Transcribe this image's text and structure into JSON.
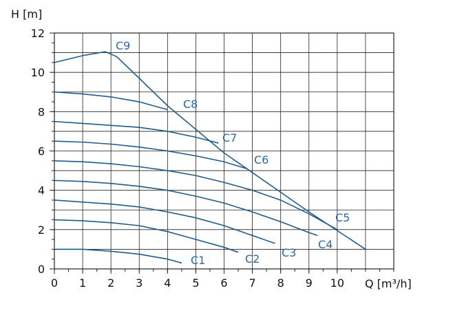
{
  "chart_data": {
    "type": "line",
    "y_label": "H [m]",
    "x_label": "Q [m³/h]",
    "xlim": [
      0,
      12
    ],
    "xticks": [
      0,
      1,
      2,
      3,
      4,
      5,
      6,
      7,
      8,
      9,
      10
    ],
    "ylim": [
      0,
      12
    ],
    "yticks": [
      0,
      2,
      4,
      6,
      8,
      10,
      12
    ],
    "grid": true,
    "series": [
      {
        "name": "C1",
        "color": "#1f5a8c",
        "x": [
          0,
          1,
          2,
          3,
          4,
          4.5
        ],
        "values": [
          1.0,
          1.0,
          0.9,
          0.75,
          0.5,
          0.3
        ]
      },
      {
        "name": "C2",
        "color": "#1f5a8c",
        "x": [
          0,
          1,
          2,
          3,
          4,
          5,
          6,
          6.5
        ],
        "values": [
          2.5,
          2.45,
          2.35,
          2.2,
          1.9,
          1.5,
          1.1,
          0.85
        ]
      },
      {
        "name": "C3",
        "color": "#1f5a8c",
        "x": [
          0,
          1,
          2,
          3,
          4,
          5,
          6,
          7,
          7.8
        ],
        "values": [
          3.5,
          3.4,
          3.3,
          3.15,
          2.9,
          2.6,
          2.2,
          1.7,
          1.3
        ]
      },
      {
        "name": "C4",
        "color": "#1f5a8c",
        "x": [
          0,
          1,
          2,
          3,
          4,
          5,
          6,
          7,
          8,
          9,
          9.3
        ],
        "values": [
          4.5,
          4.45,
          4.35,
          4.2,
          4.0,
          3.7,
          3.35,
          2.9,
          2.4,
          1.85,
          1.7
        ]
      },
      {
        "name": "C5",
        "color": "#1f5a8c",
        "x": [
          0,
          1,
          2,
          3,
          4,
          5,
          6,
          7,
          8,
          9,
          10
        ],
        "values": [
          5.5,
          5.45,
          5.35,
          5.2,
          5.0,
          4.75,
          4.4,
          4.0,
          3.5,
          2.8,
          2.0
        ]
      },
      {
        "name": "C6",
        "color": "#1f5a8c",
        "x": [
          0,
          1,
          2,
          3,
          4,
          5,
          6,
          6.8
        ],
        "values": [
          6.5,
          6.45,
          6.35,
          6.2,
          6.0,
          5.75,
          5.45,
          5.1
        ]
      },
      {
        "name": "C7",
        "color": "#1f5a8c",
        "x": [
          0,
          1,
          2,
          3,
          4,
          5,
          5.8
        ],
        "values": [
          7.5,
          7.4,
          7.3,
          7.2,
          7.0,
          6.7,
          6.4
        ]
      },
      {
        "name": "C8",
        "color": "#1f5a8c",
        "x": [
          0,
          1,
          2,
          3,
          4
        ],
        "values": [
          9.0,
          8.9,
          8.75,
          8.5,
          8.1
        ]
      },
      {
        "name": "C9",
        "color": "#1f5a8c",
        "x": [
          0,
          1,
          1.8,
          2.2,
          3,
          4,
          5,
          6,
          7,
          8,
          9,
          10,
          11
        ],
        "values": [
          10.5,
          10.85,
          11.05,
          10.8,
          9.7,
          8.3,
          7.1,
          5.9,
          4.9,
          3.9,
          2.9,
          1.95,
          1.0
        ]
      }
    ]
  }
}
